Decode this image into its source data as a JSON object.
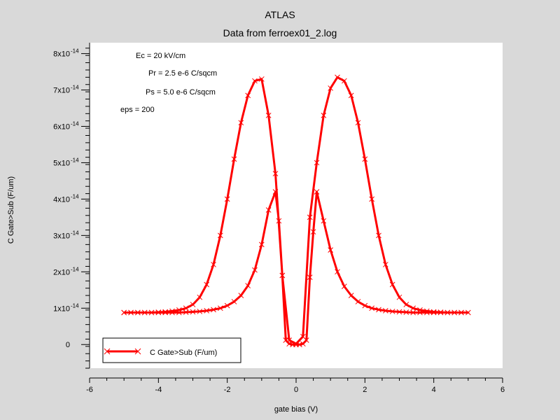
{
  "chart_data": {
    "type": "line",
    "title": "ATLAS",
    "subtitle": "Data from ferroex01_2.log",
    "xlabel": "gate bias (V)",
    "ylabel": "C Gate>Sub (F/um)",
    "xlim": [
      -6,
      6
    ],
    "ylim": [
      -6.5e-15,
      8.3e-14
    ],
    "x_ticks": [
      "-6",
      "-4",
      "-2",
      "0",
      "2",
      "4",
      "6"
    ],
    "y_ticks": [
      {
        "value": 0,
        "base": "0",
        "exp": ""
      },
      {
        "value": 1e-14,
        "base": "1x10",
        "exp": "-14"
      },
      {
        "value": 2e-14,
        "base": "2x10",
        "exp": "-14"
      },
      {
        "value": 3e-14,
        "base": "3x10",
        "exp": "-14"
      },
      {
        "value": 4e-14,
        "base": "4x10",
        "exp": "-14"
      },
      {
        "value": 5e-14,
        "base": "5x10",
        "exp": "-14"
      },
      {
        "value": 6e-14,
        "base": "6x10",
        "exp": "-14"
      },
      {
        "value": 7e-14,
        "base": "7x10",
        "exp": "-14"
      },
      {
        "value": 8e-14,
        "base": "8x10",
        "exp": "-14"
      }
    ],
    "grid": false,
    "legend_position": "bottom-left",
    "series": [
      {
        "name": "C Gate>Sub (F/um)",
        "color": "#ff0000",
        "marker": "x",
        "x": [
          -5.0,
          -4.8,
          -4.6,
          -4.4,
          -4.2,
          -4.0,
          -3.8,
          -3.6,
          -3.4,
          -3.2,
          -3.0,
          -2.8,
          -2.6,
          -2.4,
          -2.2,
          -2.0,
          -1.8,
          -1.6,
          -1.4,
          -1.2,
          -1.0,
          -0.8,
          -0.6,
          -0.5,
          -0.4,
          -0.3,
          -0.2,
          -0.1,
          0.0,
          0.1,
          0.2,
          0.3,
          0.4,
          0.5,
          0.6,
          0.8,
          1.0,
          1.2,
          1.4,
          1.6,
          1.8,
          2.0,
          2.2,
          2.4,
          2.6,
          2.8,
          3.0,
          3.2,
          3.4,
          3.6,
          3.8,
          4.0,
          4.2,
          4.4,
          4.6,
          4.8,
          5.0,
          4.8,
          4.6,
          4.4,
          4.2,
          4.0,
          3.8,
          3.6,
          3.4,
          3.2,
          3.0,
          2.8,
          2.6,
          2.4,
          2.2,
          2.0,
          1.8,
          1.6,
          1.4,
          1.2,
          1.0,
          0.8,
          0.6,
          0.4,
          0.2,
          0.0,
          -0.2,
          -0.4,
          -0.6,
          -0.8,
          -1.0,
          -1.2,
          -1.4,
          -1.6,
          -1.8,
          -2.0,
          -2.2,
          -2.4,
          -2.6,
          -2.8,
          -3.0,
          -3.2,
          -3.4,
          -3.6,
          -3.8,
          -4.0,
          -4.2,
          -4.4,
          -4.6,
          -4.8,
          -5.0
        ],
        "y": [
          8.8e-15,
          8.8e-15,
          8.8e-15,
          8.8e-15,
          8.8e-15,
          8.8e-15,
          8.8e-15,
          8.8e-15,
          8.8e-15,
          8.9e-15,
          9e-15,
          9.1e-15,
          9.3e-15,
          9.6e-15,
          1e-14,
          1.07e-14,
          1.18e-14,
          1.35e-14,
          1.62e-14,
          2.05e-14,
          2.75e-14,
          3.7e-14,
          4.2e-14,
          3.4e-14,
          1.9e-14,
          1.2e-15,
          2e-16,
          0,
          0,
          0,
          2e-16,
          1.2e-15,
          1.85e-14,
          3.1e-14,
          4.2e-14,
          3.4e-14,
          2.6e-14,
          2e-14,
          1.6e-14,
          1.35e-14,
          1.18e-14,
          1.07e-14,
          1e-14,
          9.6e-15,
          9.3e-15,
          9.1e-15,
          9e-15,
          8.9e-15,
          8.8e-15,
          8.8e-15,
          8.8e-15,
          8.8e-15,
          8.8e-15,
          8.8e-15,
          8.8e-15,
          8.8e-15,
          8.8e-15,
          8.8e-15,
          8.8e-15,
          8.8e-15,
          8.9e-15,
          9e-15,
          9.2e-15,
          9.5e-15,
          1e-14,
          1.1e-14,
          1.3e-14,
          1.65e-14,
          2.2e-14,
          3e-14,
          4e-14,
          5.1e-14,
          6.1e-14,
          6.85e-14,
          7.25e-14,
          7.35e-14,
          7.05e-14,
          6.3e-14,
          5e-14,
          3.5e-14,
          2.2e-15,
          2e-16,
          1.2e-15,
          1.9e-14,
          4.7e-14,
          6.3e-14,
          7.3e-14,
          7.25e-14,
          6.85e-14,
          6.1e-14,
          5.1e-14,
          4e-14,
          3e-14,
          2.2e-14,
          1.65e-14,
          1.3e-14,
          1.1e-14,
          1e-14,
          9.5e-15,
          9.2e-15,
          9e-15,
          8.9e-15,
          8.8e-15,
          8.8e-15,
          8.8e-15,
          8.8e-15,
          8.8e-15
        ]
      }
    ],
    "annotations": [
      "Ec = 20 kV/cm",
      "Pr = 2.5 e-6 C/sqcm",
      "Ps = 5.0 e-6 C/sqcm",
      "eps = 200"
    ]
  }
}
